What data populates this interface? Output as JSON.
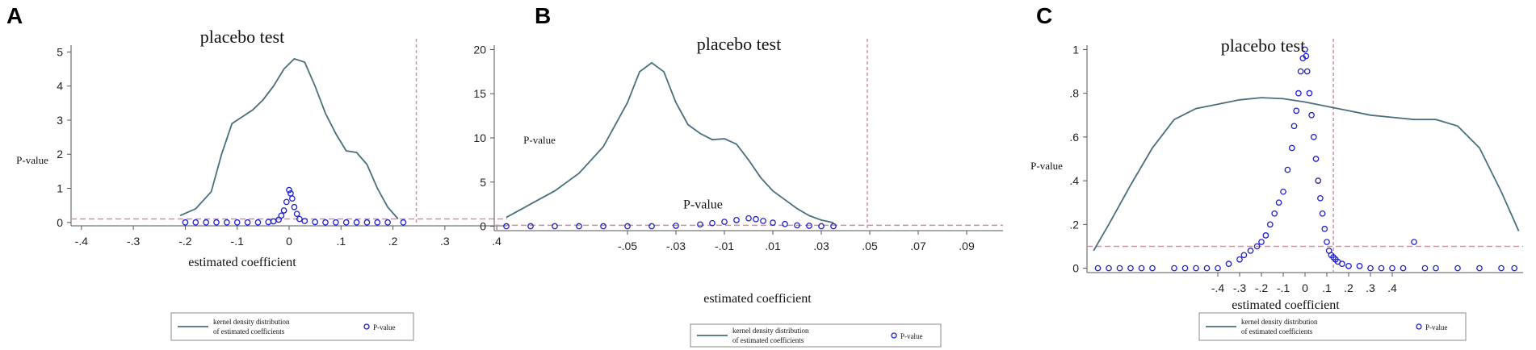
{
  "panels": [
    {
      "letter": "A"
    },
    {
      "letter": "B"
    },
    {
      "letter": "C"
    }
  ],
  "colors": {
    "density_line": "#4a6f7c",
    "pvalue_marker": "#1f1fd0",
    "ref_line": "#d98aa6",
    "axis": "#555555"
  },
  "chart_data": [
    {
      "panel": "A",
      "type": "line",
      "title": "placebo test",
      "xlabel": "estimated coefficient",
      "ylabel": "P-value",
      "xlim": [
        -0.42,
        0.42
      ],
      "ylim": [
        -0.1,
        5.2
      ],
      "xticks": [
        -0.4,
        -0.3,
        -0.2,
        -0.1,
        0,
        0.1,
        0.2,
        0.3,
        0.4
      ],
      "xtick_labels": [
        "-.4",
        "-.3",
        "-.2",
        "-.1",
        "0",
        ".1",
        ".2",
        ".3",
        ".4"
      ],
      "yticks": [
        0,
        1,
        2,
        3,
        4,
        5
      ],
      "ytick_labels": [
        "0",
        "1",
        "2",
        "3",
        "4",
        "5"
      ],
      "vline": 0.245,
      "hline": 0.1,
      "legend": [
        "kernel density distribution of estimated coefficients",
        "P-value"
      ],
      "legend_position": "bottom",
      "series": [
        {
          "kind": "line",
          "x": [
            -0.21,
            -0.18,
            -0.15,
            -0.13,
            -0.11,
            -0.09,
            -0.07,
            -0.05,
            -0.03,
            -0.01,
            0.01,
            0.03,
            0.05,
            0.07,
            0.09,
            0.11,
            0.13,
            0.15,
            0.17,
            0.19,
            0.21
          ],
          "y": [
            0.2,
            0.4,
            0.9,
            2.0,
            2.9,
            3.1,
            3.3,
            3.6,
            4.0,
            4.5,
            4.8,
            4.7,
            4.0,
            3.2,
            2.6,
            2.1,
            2.05,
            1.7,
            1.0,
            0.45,
            0.1
          ]
        },
        {
          "kind": "scatter",
          "name": "P-value",
          "x": [
            -0.2,
            -0.18,
            -0.16,
            -0.14,
            -0.12,
            -0.1,
            -0.08,
            -0.06,
            -0.04,
            -0.03,
            -0.02,
            -0.015,
            -0.01,
            -0.005,
            0,
            0.003,
            0.006,
            0.01,
            0.015,
            0.02,
            0.03,
            0.05,
            0.07,
            0.09,
            0.11,
            0.13,
            0.15,
            0.17,
            0.19,
            0.22
          ],
          "y": [
            0,
            0,
            0,
            0,
            0,
            0,
            0,
            0,
            0.01,
            0.03,
            0.08,
            0.2,
            0.35,
            0.6,
            0.95,
            0.85,
            0.7,
            0.45,
            0.25,
            0.1,
            0.04,
            0.01,
            0,
            0,
            0,
            0,
            0,
            0,
            0,
            0
          ]
        }
      ]
    },
    {
      "panel": "B",
      "type": "line",
      "title": "placebo test",
      "xlabel": "estimated coefficient",
      "ylabel": "P-value",
      "annotation": "P-value",
      "xlim": [
        -0.105,
        0.105
      ],
      "ylim": [
        -0.5,
        20.5
      ],
      "xticks": [
        -0.05,
        -0.03,
        -0.01,
        0.01,
        0.03,
        0.05,
        0.07,
        0.09
      ],
      "xtick_labels": [
        "-.05",
        "-.03",
        "-.01",
        ".01",
        ".03",
        ".05",
        ".07",
        ".09"
      ],
      "yticks": [
        0,
        5,
        10,
        15,
        20
      ],
      "ytick_labels": [
        "0",
        "5",
        "10",
        "15",
        "20"
      ],
      "vline": 0.049,
      "hline": 0.1,
      "legend": [
        "kernel density distribution of estimated coefficients",
        "P-value"
      ],
      "legend_position": "bottom",
      "series": [
        {
          "kind": "line",
          "x": [
            -0.1,
            -0.09,
            -0.08,
            -0.07,
            -0.06,
            -0.05,
            -0.045,
            -0.04,
            -0.035,
            -0.03,
            -0.025,
            -0.02,
            -0.015,
            -0.01,
            -0.005,
            0,
            0.005,
            0.01,
            0.015,
            0.02,
            0.025,
            0.03,
            0.035
          ],
          "y": [
            1.0,
            2.5,
            4.0,
            6.0,
            9.0,
            14.0,
            17.5,
            18.5,
            17.5,
            14.0,
            11.5,
            10.5,
            9.8,
            9.9,
            9.3,
            7.5,
            5.5,
            4.0,
            3.0,
            2.0,
            1.2,
            0.7,
            0.4
          ]
        },
        {
          "kind": "scatter",
          "name": "P-value",
          "x": [
            -0.1,
            -0.09,
            -0.08,
            -0.07,
            -0.06,
            -0.05,
            -0.04,
            -0.03,
            -0.02,
            -0.015,
            -0.01,
            -0.005,
            0,
            0.003,
            0.006,
            0.01,
            0.015,
            0.02,
            0.025,
            0.03,
            0.035
          ],
          "y": [
            0,
            0,
            0,
            0,
            0,
            0,
            0,
            0.05,
            0.2,
            0.35,
            0.5,
            0.7,
            0.9,
            0.8,
            0.6,
            0.4,
            0.25,
            0.1,
            0.05,
            0,
            0
          ]
        }
      ]
    },
    {
      "panel": "C",
      "type": "line",
      "title": "placebo test",
      "xlabel": "estimated coefficient",
      "ylabel": "P-value",
      "xlim": [
        -1.0,
        1.0
      ],
      "ylim": [
        -0.02,
        1.02
      ],
      "xticks": [
        -0.4,
        -0.3,
        -0.2,
        -0.1,
        0,
        0.1,
        0.2,
        0.3,
        0.4
      ],
      "xtick_labels": [
        "-.4",
        "-.3",
        "-.2",
        "-.1",
        "0",
        ".1",
        ".2",
        ".3",
        ".4"
      ],
      "yticks": [
        0,
        0.2,
        0.4,
        0.6,
        0.8,
        1
      ],
      "ytick_labels": [
        "0",
        ".2",
        ".4",
        ".6",
        ".8",
        "1"
      ],
      "vline": 0.13,
      "hline": 0.1,
      "legend": [
        "kernel density distribution of estimated coefficients",
        "P-value"
      ],
      "legend_position": "bottom",
      "series": [
        {
          "kind": "line",
          "x": [
            -0.97,
            -0.9,
            -0.8,
            -0.7,
            -0.6,
            -0.5,
            -0.4,
            -0.3,
            -0.2,
            -0.1,
            0,
            0.1,
            0.2,
            0.3,
            0.4,
            0.5,
            0.6,
            0.7,
            0.8,
            0.9,
            0.98
          ],
          "y": [
            0.08,
            0.2,
            0.38,
            0.55,
            0.68,
            0.73,
            0.75,
            0.77,
            0.78,
            0.775,
            0.76,
            0.74,
            0.72,
            0.7,
            0.69,
            0.68,
            0.68,
            0.65,
            0.55,
            0.35,
            0.17
          ]
        },
        {
          "kind": "scatter",
          "name": "P-value",
          "x": [
            -0.95,
            -0.9,
            -0.85,
            -0.8,
            -0.75,
            -0.7,
            -0.6,
            -0.55,
            -0.5,
            -0.45,
            -0.4,
            -0.35,
            -0.3,
            -0.28,
            -0.25,
            -0.22,
            -0.2,
            -0.18,
            -0.16,
            -0.14,
            -0.12,
            -0.1,
            -0.08,
            -0.06,
            -0.05,
            -0.04,
            -0.03,
            -0.02,
            -0.01,
            0,
            0.005,
            0.01,
            0.02,
            0.03,
            0.04,
            0.05,
            0.06,
            0.07,
            0.08,
            0.09,
            0.1,
            0.11,
            0.12,
            0.13,
            0.14,
            0.15,
            0.17,
            0.2,
            0.25,
            0.3,
            0.35,
            0.4,
            0.45,
            0.5,
            0.55,
            0.6,
            0.7,
            0.8,
            0.9,
            0.96
          ],
          "y": [
            0,
            0,
            0,
            0,
            0,
            0,
            0,
            0,
            0,
            0,
            0,
            0.02,
            0.04,
            0.06,
            0.08,
            0.1,
            0.12,
            0.15,
            0.2,
            0.25,
            0.3,
            0.35,
            0.45,
            0.55,
            0.65,
            0.72,
            0.8,
            0.9,
            0.96,
            1.0,
            0.97,
            0.9,
            0.8,
            0.7,
            0.6,
            0.5,
            0.4,
            0.32,
            0.25,
            0.18,
            0.12,
            0.08,
            0.06,
            0.05,
            0.04,
            0.03,
            0.02,
            0.01,
            0.01,
            0,
            0,
            0,
            0,
            0.12,
            0,
            0,
            0,
            0,
            0,
            0
          ]
        }
      ]
    }
  ]
}
